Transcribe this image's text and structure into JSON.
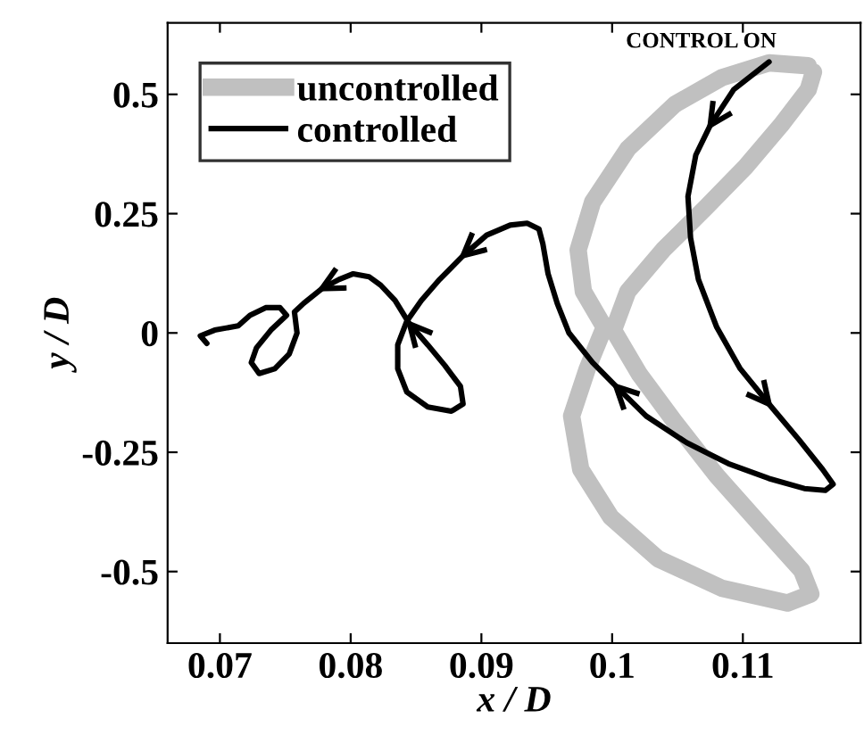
{
  "chart_data": {
    "type": "line",
    "xlabel": "x / D",
    "ylabel": "y / D",
    "annotations": [
      "CONTROL ON"
    ],
    "xlim": [
      0.066,
      0.119
    ],
    "ylim": [
      -0.65,
      0.65
    ],
    "xticks": [
      0.07,
      0.08,
      0.09,
      0.1,
      0.11
    ],
    "yticks": [
      -0.5,
      -0.25,
      0,
      0.25,
      0.5
    ],
    "grid": false,
    "legend": "top left",
    "marker": "none",
    "line_style": "solid",
    "series": [
      {
        "name": "uncontrolled",
        "color": "#c0c0c0",
        "x": [
          0.115,
          0.112,
          0.1084,
          0.1048,
          0.1012,
          0.0985,
          0.0974,
          0.0978,
          0.0994,
          0.0981,
          0.0969,
          0.0976,
          0.0999,
          0.1035,
          0.1084,
          0.1134,
          0.1152,
          0.1145,
          0.1116,
          0.108,
          0.1048,
          0.1021,
          0.1001,
          0.1012,
          0.1039,
          0.1071,
          0.1102,
          0.1129,
          0.115,
          0.1154
        ],
        "values": [
          0.56,
          0.566,
          0.535,
          0.479,
          0.386,
          0.274,
          0.174,
          0.087,
          0.012,
          -0.075,
          -0.174,
          -0.286,
          -0.386,
          -0.473,
          -0.535,
          -0.566,
          -0.547,
          -0.498,
          -0.41,
          -0.299,
          -0.187,
          -0.087,
          0.006,
          0.087,
          0.174,
          0.261,
          0.348,
          0.435,
          0.51,
          0.547
        ]
      },
      {
        "name": "controlled",
        "color": "#000000",
        "x": [
          0.112,
          0.1093,
          0.1075,
          0.1064,
          0.1058,
          0.106,
          0.1066,
          0.108,
          0.1098,
          0.112,
          0.1143,
          0.1161,
          0.1169,
          0.1163,
          0.1147,
          0.112,
          0.1089,
          0.1057,
          0.1026,
          0.1003,
          0.0985,
          0.0967,
          0.0958,
          0.0951,
          0.0947,
          0.0944,
          0.0935,
          0.0922,
          0.0904,
          0.0886,
          0.0868,
          0.0854,
          0.0843,
          0.0836,
          0.0836,
          0.0843,
          0.0859,
          0.0877,
          0.0886,
          0.0884,
          0.0872,
          0.0859,
          0.0845,
          0.0834,
          0.0823,
          0.0814,
          0.0802,
          0.0791,
          0.0778,
          0.0764,
          0.0757,
          0.0759,
          0.0753,
          0.0742,
          0.073,
          0.0724,
          0.0728,
          0.0739,
          0.0751,
          0.0746,
          0.0735,
          0.0723,
          0.0714,
          0.0696,
          0.0685,
          0.069
        ],
        "values": [
          0.568,
          0.51,
          0.435,
          0.373,
          0.286,
          0.199,
          0.112,
          0.012,
          -0.075,
          -0.149,
          -0.224,
          -0.286,
          -0.317,
          -0.33,
          -0.326,
          -0.305,
          -0.274,
          -0.23,
          -0.174,
          -0.112,
          -0.062,
          0,
          0.062,
          0.124,
          0.187,
          0.218,
          0.23,
          0.226,
          0.205,
          0.162,
          0.112,
          0.068,
          0.025,
          -0.025,
          -0.075,
          -0.124,
          -0.155,
          -0.164,
          -0.149,
          -0.112,
          -0.068,
          -0.025,
          0.019,
          0.068,
          0.1,
          0.118,
          0.124,
          0.112,
          0.093,
          0.062,
          0.044,
          0,
          -0.044,
          -0.075,
          -0.085,
          -0.062,
          -0.031,
          0.006,
          0.037,
          0.053,
          0.053,
          0.037,
          0.015,
          0.006,
          -0.006,
          -0.022
        ]
      }
    ]
  }
}
